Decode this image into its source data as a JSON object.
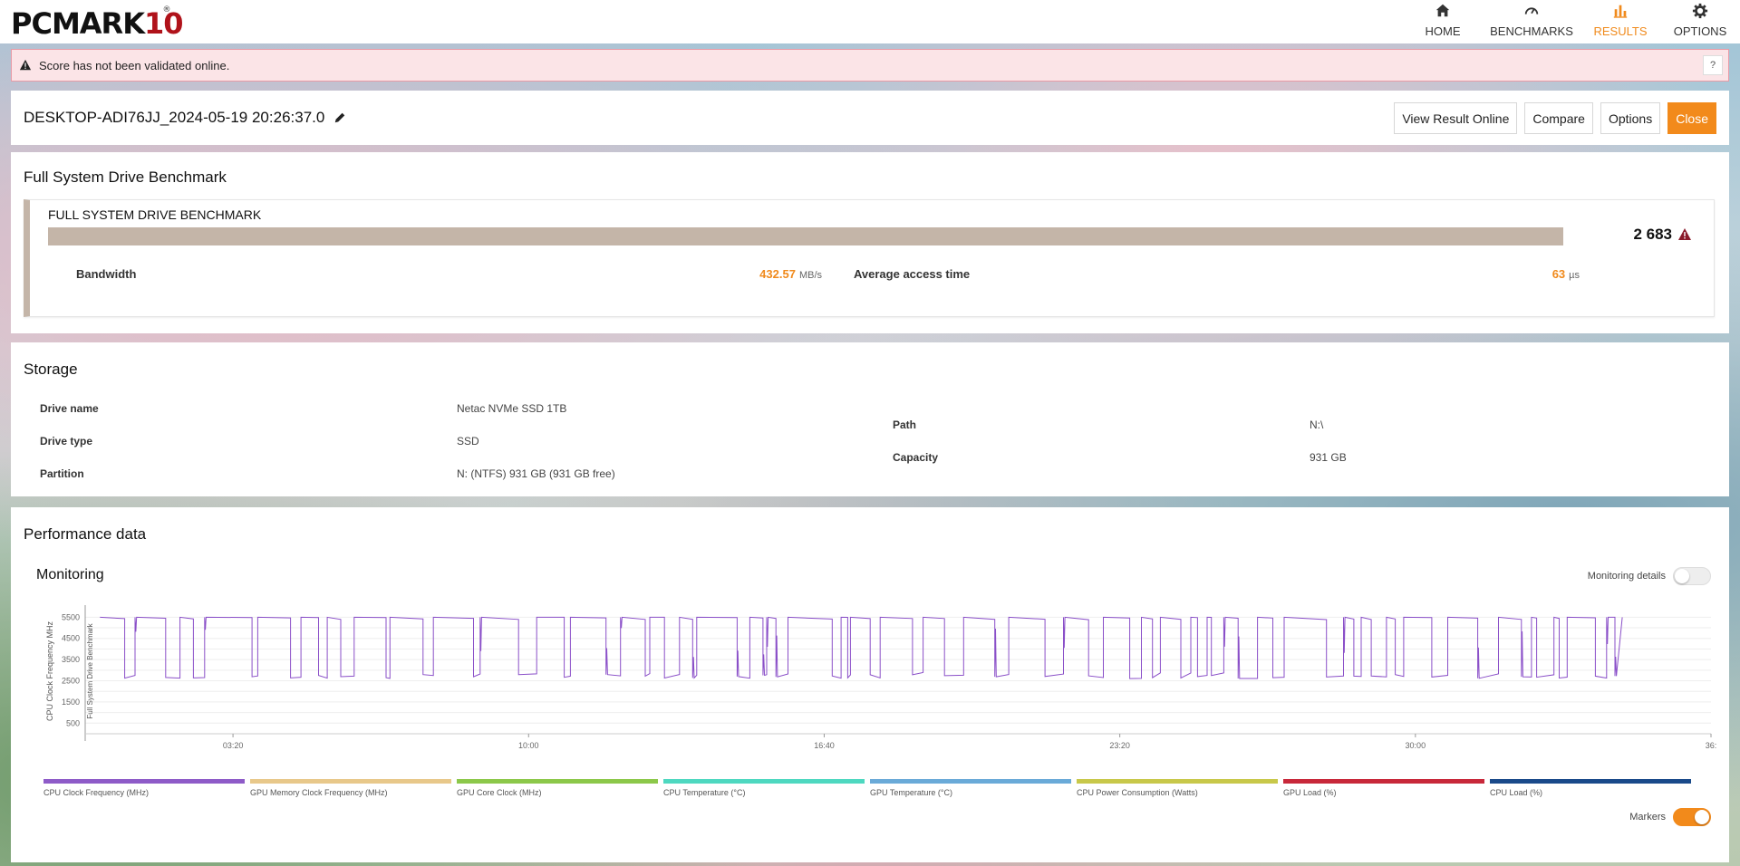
{
  "app": {
    "logo_main": "PCMARK",
    "logo_num": "10",
    "logo_reg": "®"
  },
  "nav": [
    {
      "label": "HOME",
      "icon": "home-icon",
      "active": false
    },
    {
      "label": "BENCHMARKS",
      "icon": "gauge-icon",
      "active": false
    },
    {
      "label": "RESULTS",
      "icon": "bar-chart-icon",
      "active": true
    },
    {
      "label": "OPTIONS",
      "icon": "gear-icon",
      "active": false
    }
  ],
  "warning": {
    "text": "Score has not been validated online.",
    "help": "?"
  },
  "result": {
    "title": "DESKTOP-ADI76JJ_2024-05-19 20:26:37.0",
    "buttons": {
      "view_online": "View Result Online",
      "compare": "Compare",
      "options": "Options",
      "close": "Close"
    }
  },
  "benchmark": {
    "section_title": "Full System Drive Benchmark",
    "card_title": "FULL SYSTEM DRIVE BENCHMARK",
    "score": "2 683",
    "bandwidth_label": "Bandwidth",
    "bandwidth_value": "432.57",
    "bandwidth_unit": "MB/s",
    "access_label": "Average access time",
    "access_value": "63",
    "access_unit": "µs",
    "accent_color": "#f08a1c"
  },
  "storage": {
    "section_title": "Storage",
    "drive_name_label": "Drive name",
    "drive_name": "Netac NVMe SSD 1TB",
    "drive_type_label": "Drive type",
    "drive_type": "SSD",
    "partition_label": "Partition",
    "partition": "N: (NTFS) 931 GB (931 GB free)",
    "path_label": "Path",
    "path": "N:\\",
    "capacity_label": "Capacity",
    "capacity": "931 GB"
  },
  "performance": {
    "section_title": "Performance data",
    "monitoring_title": "Monitoring",
    "monitoring_details_label": "Monitoring details",
    "monitoring_details_on": false,
    "markers_label": "Markers",
    "markers_on": true
  },
  "chart_data": {
    "type": "line",
    "ylabel": "CPU Clock Frequency MHz",
    "marker_label": "Full System Drive Benchmark",
    "y_ticks": [
      500,
      1500,
      2500,
      3500,
      4500,
      5500
    ],
    "ylim": [
      0,
      5900
    ],
    "x_ticks": [
      "03:20",
      "10:00",
      "16:40",
      "23:20",
      "30:00",
      "36:"
    ],
    "x_tick_seconds": [
      200,
      600,
      1000,
      1400,
      1800,
      2200
    ],
    "xlim": [
      0,
      2200
    ],
    "series_high": 5500,
    "series_low": 2600,
    "series_color": "#8a4fc8",
    "legend": [
      {
        "name": "CPU Clock Frequency (MHz)",
        "color": "#8e5bc8"
      },
      {
        "name": "GPU Memory Clock Frequency (MHz)",
        "color": "#e8c88a"
      },
      {
        "name": "GPU Core Clock (MHz)",
        "color": "#8cc84a"
      },
      {
        "name": "CPU Temperature (°C)",
        "color": "#4ed8c0"
      },
      {
        "name": "GPU Temperature (°C)",
        "color": "#6aaad8"
      },
      {
        "name": "CPU Power Consumption (Watts)",
        "color": "#c8c84a"
      },
      {
        "name": "GPU Load (%)",
        "color": "#c8283a"
      },
      {
        "name": "CPU Load (%)",
        "color": "#1a4a8a"
      }
    ]
  }
}
